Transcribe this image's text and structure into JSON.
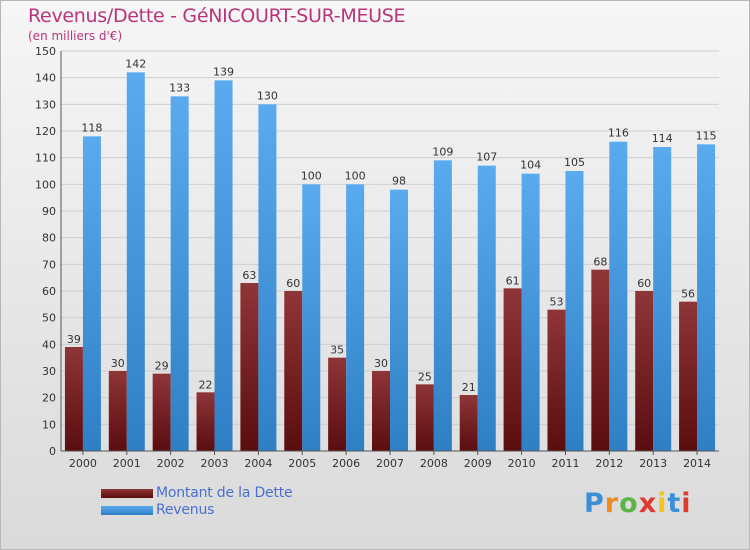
{
  "header": {
    "title": "Revenus/Dette - GéNICOURT-SUR-MEUSE",
    "subtitle": "(en milliers d'€)"
  },
  "legend": {
    "debt_label": "Montant de la Dette",
    "revenue_label": "Revenus"
  },
  "logo": {
    "text": "Proxiti",
    "letters": [
      "P",
      "r",
      "o",
      "x",
      "i",
      "t",
      "i"
    ],
    "letter_colors": [
      "#3a8fd8",
      "#f08c1e",
      "#5ab447",
      "#e03a2f",
      "#f0c419",
      "#3a8fd8",
      "#e03a2f"
    ]
  },
  "colors": {
    "debt_top": "#8f3538",
    "debt_bottom": "#5a0d0f",
    "revenue_top": "#5aaaf0",
    "revenue_bottom": "#2f7fc4",
    "title": "#b8357a",
    "legend_text": "#4a6fd1"
  },
  "chart_data": {
    "type": "bar",
    "categories": [
      "2000",
      "2001",
      "2002",
      "2003",
      "2004",
      "2005",
      "2006",
      "2007",
      "2008",
      "2009",
      "2010",
      "2011",
      "2012",
      "2013",
      "2014"
    ],
    "series": [
      {
        "name": "Montant de la Dette",
        "values": [
          39,
          30,
          29,
          22,
          63,
          60,
          35,
          30,
          25,
          21,
          61,
          53,
          68,
          60,
          56
        ]
      },
      {
        "name": "Revenus",
        "values": [
          118,
          142,
          133,
          139,
          130,
          100,
          100,
          98,
          109,
          107,
          104,
          105,
          116,
          114,
          115
        ]
      }
    ],
    "ylim": [
      0,
      150
    ],
    "yticks": [
      0,
      10,
      20,
      30,
      40,
      50,
      60,
      70,
      80,
      90,
      100,
      110,
      120,
      130,
      140,
      150
    ],
    "grid": true,
    "legend_position": "bottom-left"
  }
}
